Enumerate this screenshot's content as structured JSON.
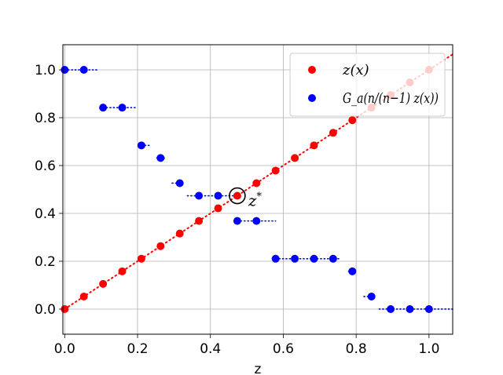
{
  "chart_data": {
    "type": "scatter",
    "xlabel": "z",
    "ylabel": "",
    "xlim": [
      -0.005,
      1.065
    ],
    "ylim": [
      -0.105,
      1.105
    ],
    "xticks": [
      "0.0",
      "0.2",
      "0.4",
      "0.6",
      "0.8",
      "1.0"
    ],
    "yticks": [
      "0.0",
      "0.2",
      "0.4",
      "0.6",
      "0.8",
      "1.0"
    ],
    "grid": true,
    "legend_position": "top-right",
    "colors": {
      "red": "#ff0000",
      "blue": "#0000ff",
      "grid": "#b0b0b0"
    },
    "series": [
      {
        "name": "z(x)",
        "color": "#ff0000",
        "x": [
          0.0,
          0.0526,
          0.1053,
          0.1579,
          0.2105,
          0.2632,
          0.3158,
          0.3684,
          0.4211,
          0.4737,
          0.5263,
          0.5789,
          0.6316,
          0.6842,
          0.7368,
          0.7895,
          0.8421,
          0.8947,
          0.9474,
          1.0
        ],
        "y": [
          0.0,
          0.0526,
          0.1053,
          0.1579,
          0.2105,
          0.2632,
          0.3158,
          0.3684,
          0.4211,
          0.4737,
          0.5263,
          0.5789,
          0.6316,
          0.6842,
          0.7368,
          0.7895,
          0.8421,
          0.8947,
          0.9474,
          1.0
        ],
        "line_style": "dotted",
        "line_x": [
          0.0,
          1.065
        ],
        "line_y": [
          0.0,
          1.065
        ]
      },
      {
        "name": "G_a(n/(n−1) z(x))",
        "color": "#0000ff",
        "x": [
          0.0,
          0.0526,
          0.1053,
          0.1579,
          0.2105,
          0.2632,
          0.3158,
          0.3684,
          0.4211,
          0.4737,
          0.5263,
          0.5789,
          0.6316,
          0.6842,
          0.7368,
          0.7895,
          0.8421,
          0.8947,
          0.9474,
          1.0
        ],
        "y": [
          1.0,
          1.0,
          0.8421,
          0.8421,
          0.6842,
          0.6316,
          0.5263,
          0.4737,
          0.4737,
          0.3684,
          0.3684,
          0.2105,
          0.2105,
          0.2105,
          0.2105,
          0.1579,
          0.0526,
          0.0,
          0.0,
          0.0
        ],
        "steps": [
          {
            "y": 1.0,
            "x0": 0.0,
            "x1": 0.0947
          },
          {
            "y": 0.8421,
            "x0": 0.1053,
            "x1": 0.2
          },
          {
            "y": 0.6842,
            "x0": 0.2105,
            "x1": 0.2316
          },
          {
            "y": 0.6316,
            "x0": 0.2526,
            "x1": 0.2737
          },
          {
            "y": 0.5263,
            "x0": 0.2947,
            "x1": 0.3158
          },
          {
            "y": 0.4737,
            "x0": 0.3368,
            "x1": 0.4737
          },
          {
            "y": 0.3684,
            "x0": 0.4737,
            "x1": 0.5789
          },
          {
            "y": 0.2105,
            "x0": 0.5789,
            "x1": 0.7579
          },
          {
            "y": 0.1579,
            "x0": 0.7789,
            "x1": 0.7895
          },
          {
            "y": 0.0526,
            "x0": 0.8211,
            "x1": 0.8421
          },
          {
            "y": 0.0,
            "x0": 0.8632,
            "x1": 1.065
          }
        ]
      }
    ],
    "legend": {
      "entries": [
        "z(x)",
        "G_a(n/(n−1) z(x))"
      ]
    },
    "annotation": {
      "label": "z*",
      "x": 0.4737,
      "y": 0.4737
    }
  }
}
